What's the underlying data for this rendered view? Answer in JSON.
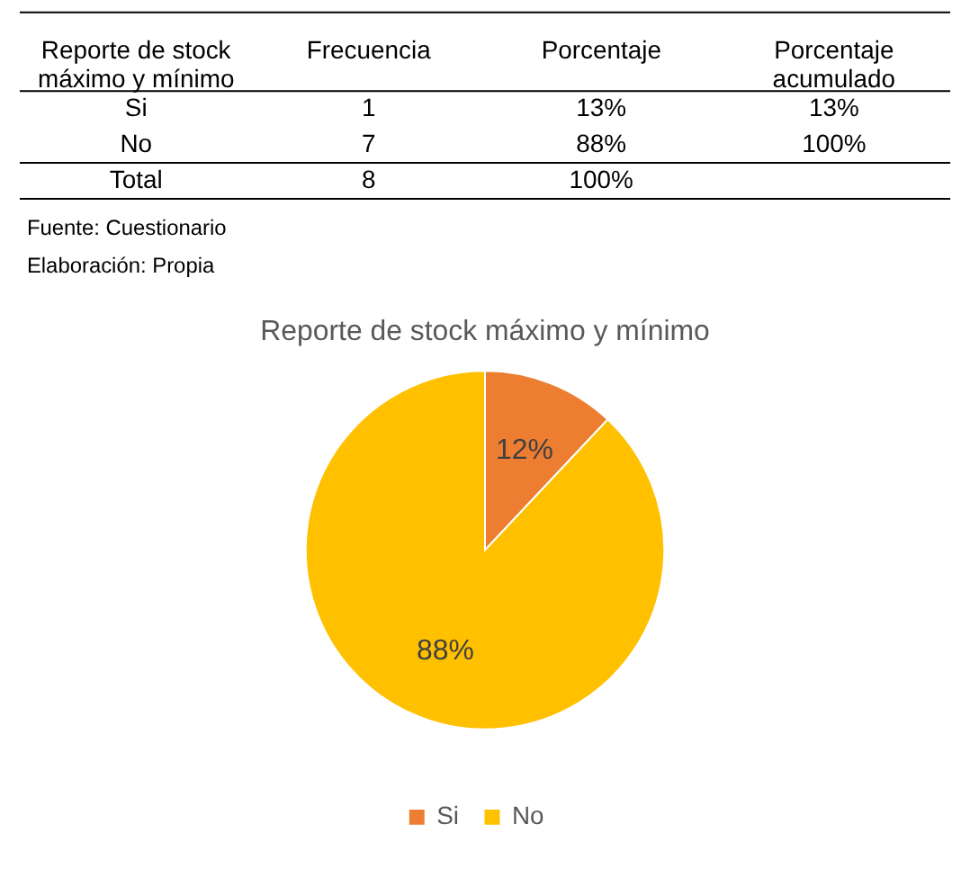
{
  "chart_data": [
    {
      "type": "other",
      "categories": [
        "Reporte de stock máximo y mínimo",
        "Frecuencia",
        "Porcentaje",
        "Porcentaje acumulado"
      ],
      "y_categories": [
        "Si",
        "No",
        "Total"
      ],
      "cell_labels": [
        [
          "1",
          "13%",
          "13%"
        ],
        [
          "7",
          "88%",
          "100%"
        ],
        [
          "8",
          "100%",
          null
        ]
      ],
      "annotations": [
        "Fuente: Cuestionario",
        "Elaboración: Propia"
      ]
    },
    {
      "type": "pie",
      "title": "Reporte de stock máximo y mínimo",
      "categories": [
        "Si",
        "No"
      ],
      "values": [
        12,
        88
      ],
      "value_labels": [
        "12%",
        "88%"
      ],
      "colors": [
        "#ed7d31",
        "#ffc000"
      ],
      "legend": "bottom"
    }
  ]
}
